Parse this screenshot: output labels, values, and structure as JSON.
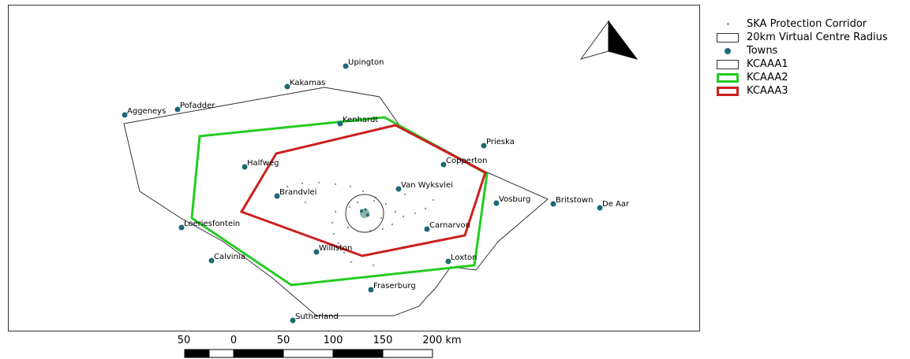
{
  "legend": {
    "items": [
      {
        "label": "SKA Protection Corridor",
        "swatch": "small-dot",
        "color": "#999999"
      },
      {
        "label": "20km Virtual Centre Radius",
        "swatch": "box",
        "color": "#333333"
      },
      {
        "label": "Towns",
        "swatch": "dot",
        "color": "#1d6a73"
      },
      {
        "label": "KCAAA1",
        "swatch": "box",
        "color": "#333333"
      },
      {
        "label": "KCAAA2",
        "swatch": "box-thick",
        "color": "#22cc22"
      },
      {
        "label": "KCAAA3",
        "swatch": "box-thick",
        "color": "#cc1f1f"
      }
    ]
  },
  "towns": [
    {
      "name": "Upington"
    },
    {
      "name": "Kakamas"
    },
    {
      "name": "Aggeneys"
    },
    {
      "name": "Pofadder"
    },
    {
      "name": "Kenhardt"
    },
    {
      "name": "Prieska"
    },
    {
      "name": "Copperton"
    },
    {
      "name": "Halfweg"
    },
    {
      "name": "Van Wyksvlei"
    },
    {
      "name": "Brandvlei"
    },
    {
      "name": "Vosburg"
    },
    {
      "name": "Britstown"
    },
    {
      "name": "De Aar"
    },
    {
      "name": "Loeriesfontein"
    },
    {
      "name": "Carnarvon"
    },
    {
      "name": "Williston"
    },
    {
      "name": "Calvinia"
    },
    {
      "name": "Loxton"
    },
    {
      "name": "Fraserburg"
    },
    {
      "name": "Sutherland"
    }
  ],
  "scalebar": {
    "labels": [
      "50",
      "0",
      "50",
      "100",
      "150",
      "200 km"
    ]
  },
  "colors": {
    "town": "#1d6a73",
    "kcaaa1": "#333333",
    "kcaaa2": "#22cc22",
    "kcaaa3": "#cc1f1f",
    "corridor": "#999999"
  }
}
